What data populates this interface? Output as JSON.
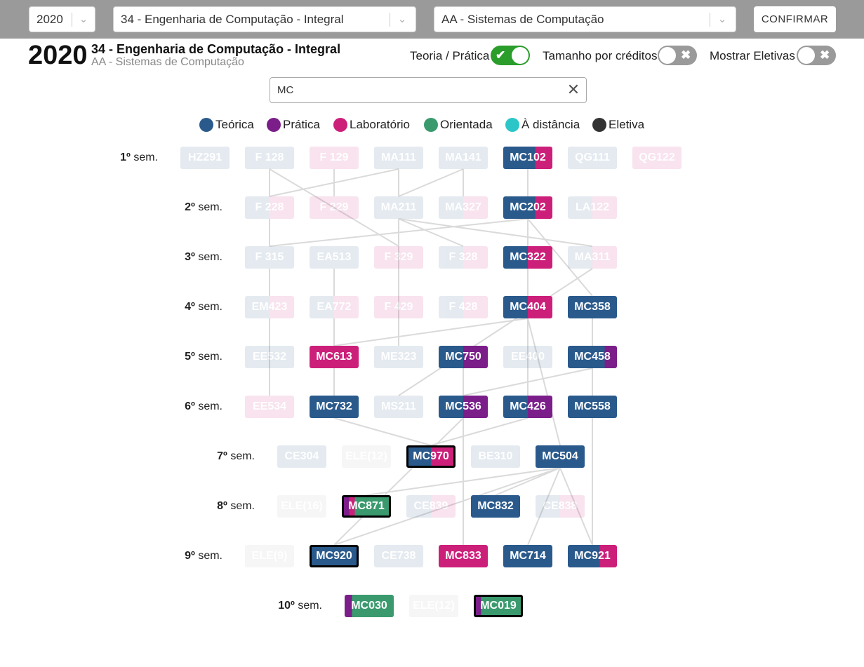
{
  "topbar": {
    "year_value": "2020",
    "course_value": "34 - Engenharia de Computação - Integral",
    "track_value": "AA - Sistemas de Computação",
    "confirm_label": "CONFIRMAR"
  },
  "header": {
    "year": "2020",
    "course": "34 - Engenharia de Computação - Integral",
    "track": "AA - Sistemas de Computação"
  },
  "toggles": [
    {
      "label": "Teoria / Prática",
      "on": true
    },
    {
      "label": "Tamanho por créditos",
      "on": false
    },
    {
      "label": "Mostrar Eletivas",
      "on": false
    }
  ],
  "search": {
    "value": "MC",
    "placeholder": ""
  },
  "colors": {
    "teorica": "#2a5a8c",
    "pratica": "#7b1e8a",
    "laboratorio": "#cc1f7a",
    "orientada": "#3a9a6e",
    "distancia": "#2cc6c9",
    "eletiva": "#333333",
    "elective_box": "#bdbdbd"
  },
  "legend": [
    {
      "label": "Teórica",
      "color": "#2a5a8c"
    },
    {
      "label": "Prática",
      "color": "#7b1e8a"
    },
    {
      "label": "Laboratório",
      "color": "#cc1f7a"
    },
    {
      "label": "Orientada",
      "color": "#3a9a6e"
    },
    {
      "label": "À distância",
      "color": "#2cc6c9"
    },
    {
      "label": "Eletiva",
      "color": "#333333"
    }
  ],
  "semesters": [
    {
      "label": "1º sem.",
      "courses": [
        {
          "code": "HZ291",
          "active": false,
          "parts": [
            [
              "teorica",
              1
            ]
          ]
        },
        {
          "code": "F 128",
          "active": false,
          "parts": [
            [
              "teorica",
              1
            ]
          ]
        },
        {
          "code": "F 129",
          "active": false,
          "parts": [
            [
              "laboratorio",
              1
            ]
          ]
        },
        {
          "code": "MA111",
          "active": false,
          "parts": [
            [
              "teorica",
              1
            ]
          ]
        },
        {
          "code": "MA141",
          "active": false,
          "parts": [
            [
              "teorica",
              1
            ]
          ]
        },
        {
          "code": "MC102",
          "active": true,
          "parts": [
            [
              "teorica",
              0.65
            ],
            [
              "laboratorio",
              0.35
            ]
          ]
        },
        {
          "code": "QG111",
          "active": false,
          "parts": [
            [
              "teorica",
              1
            ]
          ]
        },
        {
          "code": "QG122",
          "active": false,
          "parts": [
            [
              "laboratorio",
              1
            ]
          ]
        }
      ]
    },
    {
      "label": "2º sem.",
      "courses": [
        {
          "code": "F 228",
          "active": false,
          "parts": [
            [
              "teorica",
              0.5
            ],
            [
              "laboratorio",
              0.5
            ]
          ]
        },
        {
          "code": "F 229",
          "active": false,
          "parts": [
            [
              "laboratorio",
              1
            ]
          ]
        },
        {
          "code": "MA211",
          "active": false,
          "parts": [
            [
              "teorica",
              1
            ]
          ]
        },
        {
          "code": "MA327",
          "active": false,
          "parts": [
            [
              "teorica",
              0.5
            ],
            [
              "laboratorio",
              0.5
            ]
          ]
        },
        {
          "code": "MC202",
          "active": true,
          "parts": [
            [
              "teorica",
              0.65
            ],
            [
              "laboratorio",
              0.35
            ]
          ]
        },
        {
          "code": "LA122",
          "active": false,
          "parts": [
            [
              "teorica",
              0.5
            ],
            [
              "laboratorio",
              0.5
            ]
          ]
        }
      ]
    },
    {
      "label": "3º sem.",
      "courses": [
        {
          "code": "F 315",
          "active": false,
          "parts": [
            [
              "teorica",
              1
            ]
          ]
        },
        {
          "code": "EA513",
          "active": false,
          "parts": [
            [
              "teorica",
              1
            ]
          ]
        },
        {
          "code": "F 329",
          "active": false,
          "parts": [
            [
              "laboratorio",
              1
            ]
          ]
        },
        {
          "code": "F 328",
          "active": false,
          "parts": [
            [
              "teorica",
              0.5
            ],
            [
              "laboratorio",
              0.5
            ]
          ]
        },
        {
          "code": "MC322",
          "active": true,
          "parts": [
            [
              "teorica",
              0.5
            ],
            [
              "laboratorio",
              0.5
            ]
          ]
        },
        {
          "code": "MA311",
          "active": false,
          "parts": [
            [
              "teorica",
              0.5
            ],
            [
              "laboratorio",
              0.5
            ]
          ]
        }
      ]
    },
    {
      "label": "4º sem.",
      "courses": [
        {
          "code": "EM423",
          "active": false,
          "parts": [
            [
              "teorica",
              0.5
            ],
            [
              "laboratorio",
              0.5
            ]
          ]
        },
        {
          "code": "EA772",
          "active": false,
          "parts": [
            [
              "teorica",
              0.5
            ],
            [
              "laboratorio",
              0.5
            ]
          ]
        },
        {
          "code": "F 429",
          "active": false,
          "parts": [
            [
              "laboratorio",
              1
            ]
          ]
        },
        {
          "code": "F 428",
          "active": false,
          "parts": [
            [
              "teorica",
              0.5
            ],
            [
              "laboratorio",
              0.5
            ]
          ]
        },
        {
          "code": "MC404",
          "active": true,
          "parts": [
            [
              "teorica",
              0.5
            ],
            [
              "laboratorio",
              0.5
            ]
          ]
        },
        {
          "code": "MC358",
          "active": true,
          "parts": [
            [
              "teorica",
              1
            ]
          ]
        }
      ]
    },
    {
      "label": "5º sem.",
      "courses": [
        {
          "code": "EE532",
          "active": false,
          "parts": [
            [
              "teorica",
              1
            ]
          ]
        },
        {
          "code": "MC613",
          "active": true,
          "parts": [
            [
              "laboratorio",
              1
            ]
          ]
        },
        {
          "code": "ME323",
          "active": false,
          "parts": [
            [
              "teorica",
              1
            ]
          ]
        },
        {
          "code": "MC750",
          "active": true,
          "parts": [
            [
              "teorica",
              0.5
            ],
            [
              "pratica",
              0.5
            ]
          ]
        },
        {
          "code": "EE400",
          "active": false,
          "parts": [
            [
              "teorica",
              1
            ]
          ]
        },
        {
          "code": "MC458",
          "active": true,
          "parts": [
            [
              "teorica",
              0.75
            ],
            [
              "pratica",
              0.25
            ]
          ]
        }
      ]
    },
    {
      "label": "6º sem.",
      "courses": [
        {
          "code": "EE534",
          "active": false,
          "parts": [
            [
              "laboratorio",
              1
            ]
          ]
        },
        {
          "code": "MC732",
          "active": true,
          "parts": [
            [
              "teorica",
              1
            ]
          ]
        },
        {
          "code": "MS211",
          "active": false,
          "parts": [
            [
              "teorica",
              1
            ]
          ]
        },
        {
          "code": "MC536",
          "active": true,
          "parts": [
            [
              "teorica",
              0.5
            ],
            [
              "pratica",
              0.5
            ]
          ]
        },
        {
          "code": "MC426",
          "active": true,
          "parts": [
            [
              "teorica",
              0.5
            ],
            [
              "pratica",
              0.5
            ]
          ]
        },
        {
          "code": "MC558",
          "active": true,
          "parts": [
            [
              "teorica",
              1
            ]
          ]
        }
      ]
    },
    {
      "label": "7º sem.",
      "courses": [
        {
          "code": "CE304",
          "active": false,
          "parts": [
            [
              "teorica",
              1
            ]
          ]
        },
        {
          "code": "ELE(12)",
          "active": false,
          "parts": [
            [
              "elective",
              1
            ]
          ]
        },
        {
          "code": "MC970",
          "active": true,
          "selected": true,
          "parts": [
            [
              "teorica",
              0.5
            ],
            [
              "laboratorio",
              0.5
            ]
          ]
        },
        {
          "code": "BE310",
          "active": false,
          "parts": [
            [
              "teorica",
              1
            ]
          ]
        },
        {
          "code": "MC504",
          "active": true,
          "parts": [
            [
              "teorica",
              1
            ]
          ]
        }
      ]
    },
    {
      "label": "8º sem.",
      "courses": [
        {
          "code": "ELE(16)",
          "active": false,
          "parts": [
            [
              "elective",
              1
            ]
          ]
        },
        {
          "code": "MC871",
          "active": true,
          "selected": true,
          "parts": [
            [
              "pratica",
              0.12
            ],
            [
              "laboratorio",
              0.12
            ],
            [
              "orientada",
              0.76
            ]
          ]
        },
        {
          "code": "CE839",
          "active": false,
          "parts": [
            [
              "teorica",
              0.5
            ],
            [
              "laboratorio",
              0.5
            ]
          ]
        },
        {
          "code": "MC832",
          "active": true,
          "parts": [
            [
              "teorica",
              1
            ]
          ]
        },
        {
          "code": "CE838",
          "active": false,
          "parts": [
            [
              "teorica",
              0.5
            ],
            [
              "laboratorio",
              0.5
            ]
          ]
        }
      ]
    },
    {
      "label": "9º sem.",
      "courses": [
        {
          "code": "ELE(9)",
          "active": false,
          "parts": [
            [
              "elective",
              1
            ]
          ]
        },
        {
          "code": "MC920",
          "active": true,
          "selected": true,
          "parts": [
            [
              "teorica",
              1
            ]
          ]
        },
        {
          "code": "CE738",
          "active": false,
          "parts": [
            [
              "teorica",
              1
            ]
          ]
        },
        {
          "code": "MC833",
          "active": true,
          "parts": [
            [
              "laboratorio",
              1
            ]
          ]
        },
        {
          "code": "MC714",
          "active": true,
          "parts": [
            [
              "teorica",
              1
            ]
          ]
        },
        {
          "code": "MC921",
          "active": true,
          "parts": [
            [
              "teorica",
              0.65
            ],
            [
              "laboratorio",
              0.35
            ]
          ]
        }
      ]
    },
    {
      "label": "10º sem.",
      "courses": [
        {
          "code": "MC030",
          "active": true,
          "parts": [
            [
              "pratica",
              0.15
            ],
            [
              "orientada",
              0.85
            ]
          ]
        },
        {
          "code": "ELE(12)",
          "active": false,
          "parts": [
            [
              "elective",
              1
            ]
          ]
        },
        {
          "code": "MC019",
          "active": true,
          "selected": true,
          "parts": [
            [
              "pratica",
              0.12
            ],
            [
              "orientada",
              0.88
            ]
          ]
        }
      ]
    }
  ],
  "prerequisites": [
    [
      "F 128",
      "F 228"
    ],
    [
      "F 128",
      "F 329"
    ],
    [
      "F 129",
      "F 229"
    ],
    [
      "MA111",
      "MA211"
    ],
    [
      "MA111",
      "F 228"
    ],
    [
      "MA141",
      "MA327"
    ],
    [
      "MA141",
      "MA211"
    ],
    [
      "MC102",
      "MC202"
    ],
    [
      "MC102",
      "MC102"
    ],
    [
      "MC202",
      "MC322"
    ],
    [
      "MC202",
      "MC358"
    ],
    [
      "MC202",
      "F 315"
    ],
    [
      "MA211",
      "MA311"
    ],
    [
      "MA211",
      "F 328"
    ],
    [
      "MC322",
      "MC404"
    ],
    [
      "MC322",
      "MC426"
    ],
    [
      "MC358",
      "MC458"
    ],
    [
      "MC404",
      "MC504"
    ],
    [
      "MC404",
      "MC613"
    ],
    [
      "MA311",
      "MS211"
    ],
    [
      "EA513",
      "EA772"
    ],
    [
      "EA772",
      "MC732"
    ],
    [
      "MC458",
      "MC558"
    ],
    [
      "MC458",
      "MC536"
    ],
    [
      "MC426",
      "MC970"
    ],
    [
      "MC504",
      "MC871"
    ],
    [
      "MC504",
      "MC832"
    ],
    [
      "MC504",
      "MC714"
    ],
    [
      "MC504",
      "MC921"
    ],
    [
      "MC504",
      "MC920"
    ],
    [
      "MC750",
      "MC833"
    ],
    [
      "F 315",
      "EM423"
    ],
    [
      "F 228",
      "F 315"
    ],
    [
      "EM423",
      "EE534"
    ],
    [
      "MC558",
      "MC921"
    ],
    [
      "MC536",
      "MC920"
    ],
    [
      "MC732",
      "MC970"
    ],
    [
      "MA211",
      "ME323"
    ],
    [
      "MC613",
      "MC732"
    ]
  ]
}
